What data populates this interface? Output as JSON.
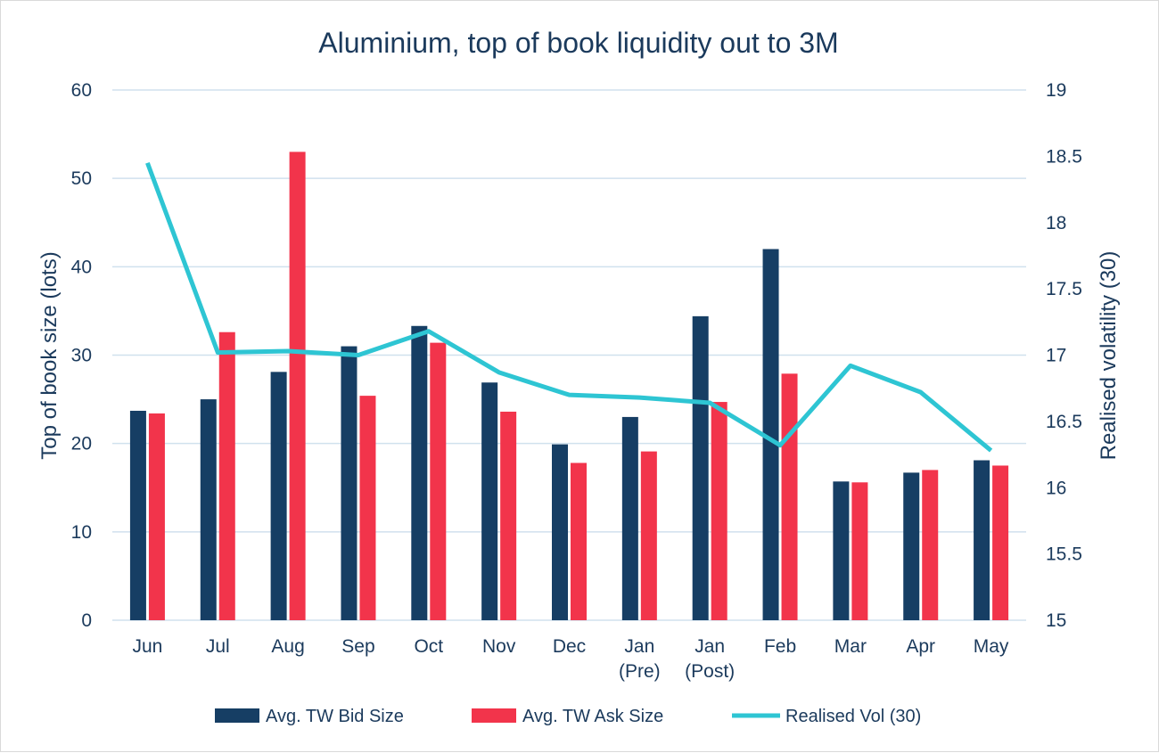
{
  "chart_data": {
    "type": "bar",
    "title": "Aluminium, top of book liquidity out to 3M",
    "ylabel": "Top of book size (lots)",
    "y2label": "Realised volatility (30)",
    "ylim": [
      0,
      60
    ],
    "y2lim": [
      15,
      19
    ],
    "yticks": [
      "0",
      "10",
      "20",
      "30",
      "40",
      "50",
      "60"
    ],
    "y2ticks": [
      "15",
      "15.5",
      "16",
      "16.5",
      "17",
      "17.5",
      "18",
      "18.5",
      "19"
    ],
    "categories": [
      [
        "Jun"
      ],
      [
        "Jul"
      ],
      [
        "Aug"
      ],
      [
        "Sep"
      ],
      [
        "Oct"
      ],
      [
        "Nov"
      ],
      [
        "Dec"
      ],
      [
        "Jan",
        "(Pre)"
      ],
      [
        "Jan",
        "(Post)"
      ],
      [
        "Feb"
      ],
      [
        "Mar"
      ],
      [
        "Apr"
      ],
      [
        "May"
      ]
    ],
    "series": [
      {
        "name": "Avg. TW Bid Size",
        "kind": "bar",
        "axis": "left",
        "color": "#163e64",
        "values": [
          23.7,
          25.0,
          28.1,
          31.0,
          33.3,
          26.9,
          19.9,
          23.0,
          34.4,
          42.0,
          15.7,
          16.7,
          18.1
        ]
      },
      {
        "name": "Avg. TW Ask Size",
        "kind": "bar",
        "axis": "left",
        "color": "#f2344b",
        "values": [
          23.4,
          32.6,
          53.0,
          25.4,
          31.4,
          23.6,
          17.8,
          19.1,
          24.7,
          27.9,
          15.6,
          17.0,
          17.5
        ]
      },
      {
        "name": "Realised Vol (30)",
        "kind": "line",
        "axis": "right",
        "color": "#2ec5d3",
        "values": [
          18.45,
          17.02,
          17.03,
          17.0,
          17.18,
          16.87,
          16.7,
          16.68,
          16.64,
          16.32,
          16.92,
          16.72,
          16.28
        ]
      }
    ],
    "grid": true,
    "legend": "bottom"
  }
}
